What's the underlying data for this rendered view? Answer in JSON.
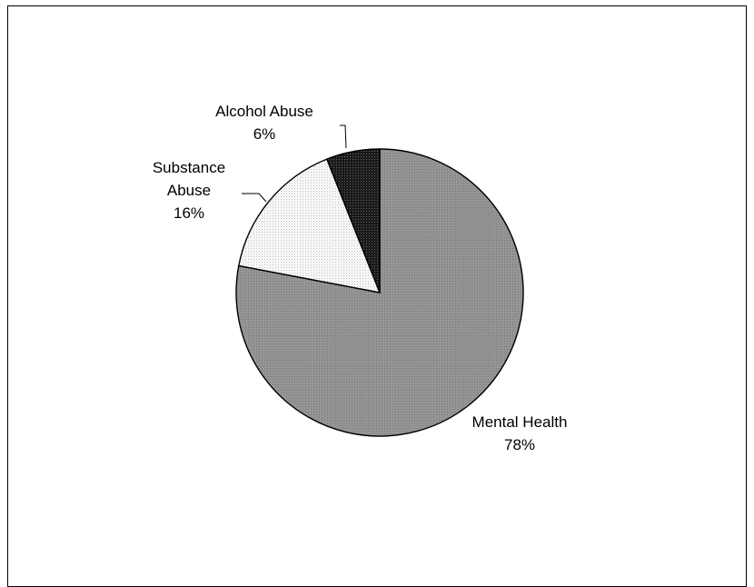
{
  "chart_data": {
    "type": "pie",
    "title": "",
    "start_angle_deg": 0,
    "direction": "clockwise",
    "legend": "none",
    "slices": [
      {
        "id": "mental-health",
        "label_lines": [
          "Mental Health"
        ],
        "percent_label": "78%",
        "value": 78,
        "pattern": "medium-gray-dots",
        "color": "#8c8c8c"
      },
      {
        "id": "substance-abuse",
        "label_lines": [
          "Substance",
          "Abuse"
        ],
        "percent_label": "16%",
        "value": 16,
        "pattern": "light-dots",
        "color": "#f2f2f2"
      },
      {
        "id": "alcohol-abuse",
        "label_lines": [
          "Alcohol Abuse"
        ],
        "percent_label": "6%",
        "value": 6,
        "pattern": "dark-dots",
        "color": "#222222"
      }
    ]
  }
}
